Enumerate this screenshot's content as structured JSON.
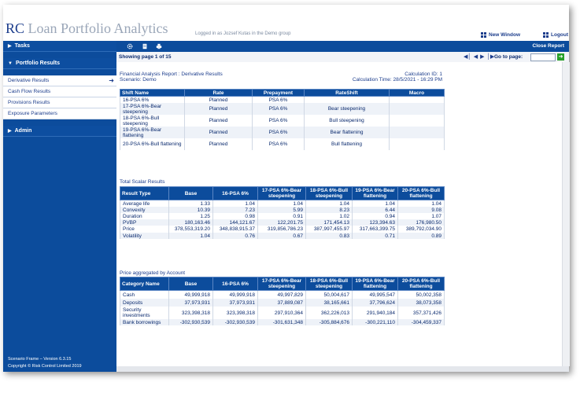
{
  "app": {
    "brand_prefix": "RC",
    "brand_rest": "Loan Portfolio Analytics",
    "logged_in": "Logged in as Jozsef Kutas in the Demo group",
    "new_window": "New Window",
    "logout": "Logout"
  },
  "sidebar": {
    "tasks": "Tasks",
    "portfolio_results": "Portfolio Results",
    "items": [
      "Derivative Results",
      "Cash Flow Results",
      "Provisions Results",
      "Exposure Parameters"
    ],
    "admin": "Admin",
    "version": "Scenario Frame – Version 6.3.15",
    "copyright": "Copyright © Risk Control Limited 2019"
  },
  "toolbar": {
    "icons": [
      "settings-icon",
      "document-icon",
      "print-icon"
    ],
    "close_report": "Close Report"
  },
  "pager": {
    "showing": "Showing page  1  of  15",
    "goto": "Go to page:"
  },
  "report": {
    "title": "Financial Analysis Report : Derivative Results",
    "scenario": "Scenario: Demo",
    "calc_id": "Calculation ID:  1",
    "calc_time": "Calculation Time: 28/5/2021 - 16:29 PM"
  },
  "shifts": {
    "headers": [
      "Shift Name",
      "Rate",
      "Prepayment",
      "RateShift",
      "Macro"
    ],
    "rows": [
      [
        "16-PSA 6%",
        "Planned",
        "PSA 6%",
        "",
        ""
      ],
      [
        "17-PSA 6%-Bear steepening",
        "Planned",
        "PSA 6%",
        "Bear steepening",
        ""
      ],
      [
        "18-PSA 6%-Bull steepening",
        "Planned",
        "PSA 6%",
        "Bull steepening",
        ""
      ],
      [
        "19-PSA 6%-Bear flattening",
        "Planned",
        "PSA 6%",
        "Bear flattening",
        ""
      ],
      [
        "20-PSA 6%-Bull flattening",
        "Planned",
        "PSA 6%",
        "Bull flattening",
        ""
      ]
    ]
  },
  "scalar": {
    "title": "Total Scalar Results",
    "headers": [
      "Result Type",
      "Base",
      "16-PSA 6%",
      "17-PSA 6%-Bear steepening",
      "18-PSA 6%-Bull steepening",
      "19-PSA 6%-Bear flattening",
      "20-PSA 6%-Bull flattening"
    ],
    "rows": [
      [
        "Average life",
        "1.33",
        "1.04",
        "1.04",
        "1.04",
        "1.04",
        "1.04"
      ],
      [
        "Convexity",
        "10.39",
        "7.23",
        "5.99",
        "8.23",
        "6.44",
        "9.08"
      ],
      [
        "Duration",
        "1.25",
        "0.98",
        "0.91",
        "1.02",
        "0.94",
        "1.07"
      ],
      [
        "PVBP",
        "180,163.46",
        "144,121.67",
        "122,201.75",
        "171,454.13",
        "123,394.63",
        "176,980.50"
      ],
      [
        "Price",
        "378,553,319.20",
        "348,838,915.37",
        "319,856,786.23",
        "387,997,455.97",
        "317,663,399.75",
        "389,792,034.90"
      ],
      [
        "Volatility",
        "1.04",
        "0.76",
        "0.67",
        "0.83",
        "0.71",
        "0.89"
      ]
    ]
  },
  "account": {
    "title": "Price aggregated by Account",
    "headers": [
      "Category Name",
      "Base",
      "16-PSA 6%",
      "17-PSA 6%-Bear steepening",
      "18-PSA 6%-Bull steepening",
      "19-PSA 6%-Bear flattening",
      "20-PSA 6%-Bull flattening"
    ],
    "rows": [
      [
        "Cash",
        "49,999,918",
        "49,999,918",
        "49,997,829",
        "50,004,617",
        "49,995,547",
        "50,002,358"
      ],
      [
        "Deposits",
        "37,973,931",
        "37,973,931",
        "37,889,087",
        "38,165,661",
        "37,796,624",
        "38,073,358"
      ],
      [
        "Security investments",
        "323,398,318",
        "323,398,318",
        "297,910,364",
        "362,226,013",
        "291,940,184",
        "357,371,426"
      ],
      [
        "Bank borrowings",
        "-302,930,539",
        "-302,930,539",
        "-301,631,348",
        "-305,884,676",
        "-300,221,110",
        "-304,459,337"
      ]
    ]
  }
}
